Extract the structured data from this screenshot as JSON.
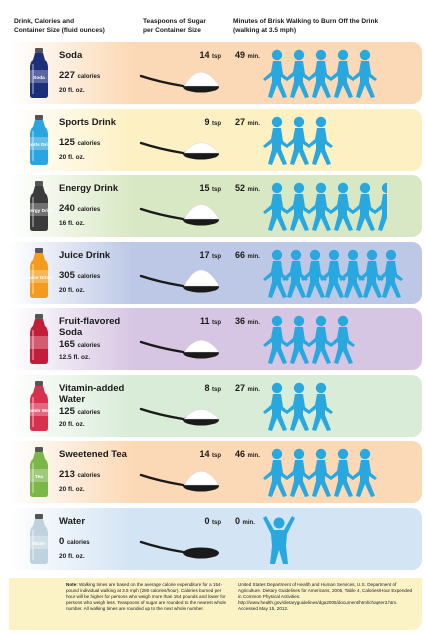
{
  "headers": {
    "col1_line1": "Drink, Calories and",
    "col1_line2": "Container Size (fluid ounces)",
    "col2_line1": "Teaspoons of Sugar",
    "col2_line2": "per Container Size",
    "col3_line1": "Minutes of Brisk Walking to Burn Off the Drink",
    "col3_line2": "(walking at 3.5 mph)"
  },
  "units": {
    "calories": "calories",
    "tsp": "tsp",
    "min": "min."
  },
  "drinks": [
    {
      "name_line1": "Soda",
      "name_line2": "",
      "calories": "227",
      "size": "20 fl. oz.",
      "tsp": "14",
      "minutes": "49",
      "walkers": 5,
      "bg": "#fcd9b6",
      "bottle_color": "#1b2f7a",
      "bottle_label": "Soda"
    },
    {
      "name_line1": "Sports Drink",
      "name_line2": "",
      "calories": "125",
      "size": "20 fl. oz.",
      "tsp": "9",
      "minutes": "27",
      "walkers": 3,
      "bg": "#fdf0c2",
      "bottle_color": "#2aa5e0",
      "bottle_label": "Sports Drink"
    },
    {
      "name_line1": "Energy Drink",
      "name_line2": "",
      "calories": "240",
      "size": "16 fl. oz.",
      "tsp": "15",
      "minutes": "52",
      "walkers": 5.5,
      "bg": "#d9e8c4",
      "bottle_color": "#3b3b3b",
      "bottle_label": "Energy Drink"
    },
    {
      "name_line1": "Juice Drink",
      "name_line2": "",
      "calories": "305",
      "size": "20 fl. oz.",
      "tsp": "17",
      "minutes": "66",
      "walkers": 7,
      "bg": "#bcc8e6",
      "bottle_color": "#f29b1d",
      "bottle_label": "Juice Drink"
    },
    {
      "name_line1": "Fruit-flavored",
      "name_line2": "Soda",
      "calories": "165",
      "size": "12.5 fl. oz.",
      "tsp": "11",
      "minutes": "36",
      "walkers": 4,
      "bg": "#d7c6e3",
      "bottle_color": "#c21e3a",
      "bottle_label": ""
    },
    {
      "name_line1": "Vitamin-added",
      "name_line2": "Water",
      "calories": "125",
      "size": "20 fl. oz.",
      "tsp": "8",
      "minutes": "27",
      "walkers": 3,
      "bg": "#d8ecd7",
      "bottle_color": "#d9304f",
      "bottle_label": "Vitamin Water"
    },
    {
      "name_line1": "Sweetened Tea",
      "name_line2": "",
      "calories": "213",
      "size": "20 fl. oz.",
      "tsp": "14",
      "minutes": "46",
      "walkers": 5,
      "bg": "#fcd9b6",
      "bottle_color": "#7ab648",
      "bottle_label": "Tea"
    },
    {
      "name_line1": "Water",
      "name_line2": "",
      "calories": "0",
      "size": "20 fl. oz.",
      "tsp": "0",
      "minutes": "0",
      "walkers": 0,
      "bg": "#d3e4f4",
      "bottle_color": "#bfd3de",
      "bottle_label": "Water"
    }
  ],
  "footer": {
    "note_label": "Note:",
    "note_text": "Walking times are based on the average calorie expenditure for a 154-pound individual walking at 3.5 mph (280 calories/hour). Calories burned per hour will be higher for persons who weigh more than 154 pounds and lower for persons who weigh less. Teaspoons of sugar are rounded to the nearest whole number. All walking times are rounded up to the next whole number.",
    "source_text": "United States Department of Health and Human Services, U.S. Department of Agriculture. Dietary Guidelines for Americans, 2005, Table 4, Calories/Hour Expended in Common Physical Activities. http://www.health.gov/dietaryguidelines/dga2005/document/html/chapter3.htm. Accessed May 15, 2012."
  },
  "colors": {
    "walker": "#29a8e0",
    "spoon": "#1a1a1a",
    "footer_bg": "#fbf2c6"
  }
}
